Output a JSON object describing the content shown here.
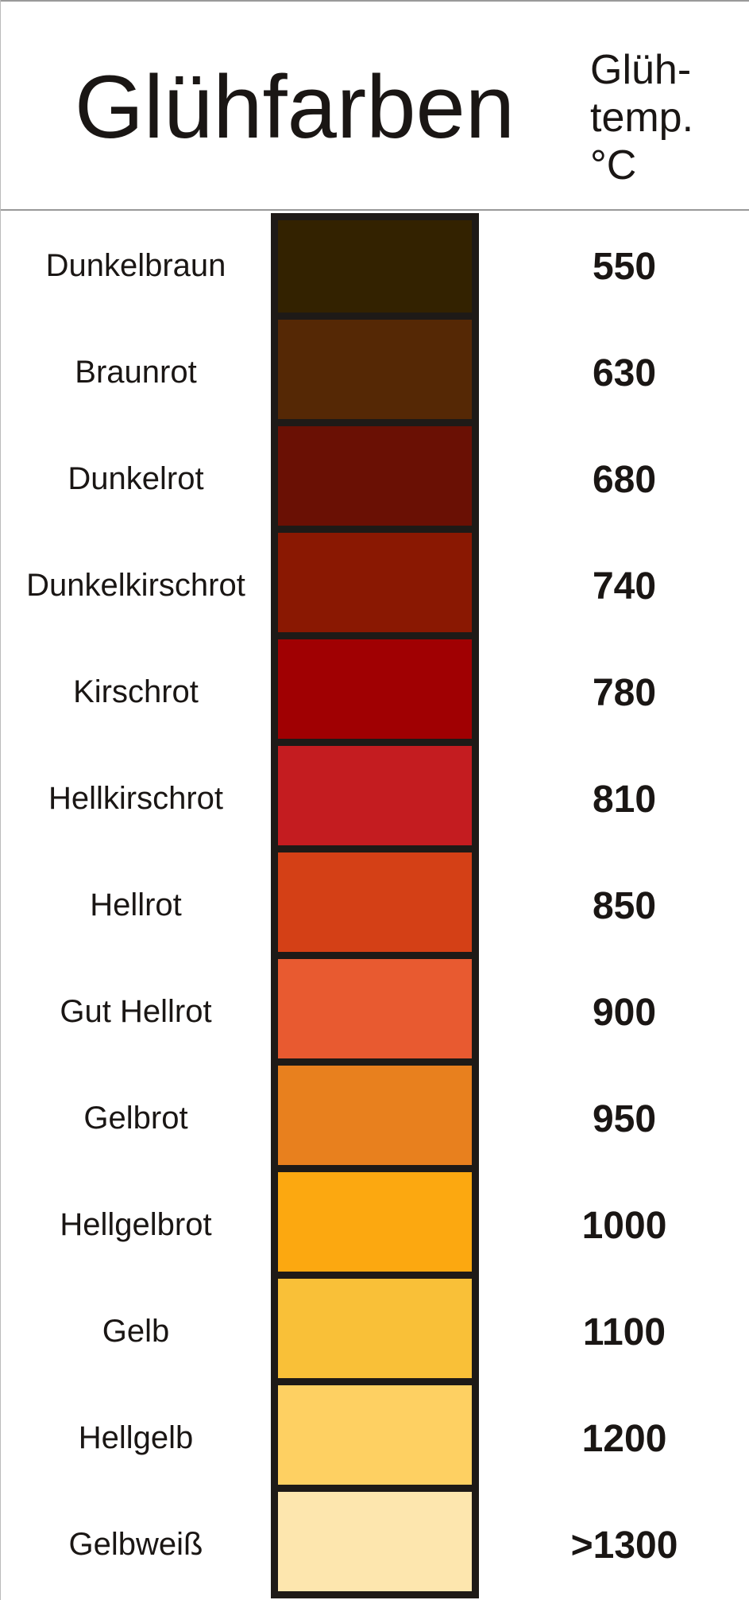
{
  "chart_data": {
    "type": "table",
    "title": "Glühfarben",
    "columns": [
      "Glühfarben",
      "Glüh- temp. °C"
    ],
    "unit_header": [
      "Glüh-",
      "temp.",
      "°C"
    ],
    "rows": [
      {
        "name": "Dunkelbraun",
        "temp": "550",
        "color": "#332200"
      },
      {
        "name": "Braunrot",
        "temp": "630",
        "color": "#552805"
      },
      {
        "name": "Dunkelrot",
        "temp": "680",
        "color": "#6a1004"
      },
      {
        "name": "Dunkelkirschrot",
        "temp": "740",
        "color": "#8a1802"
      },
      {
        "name": "Kirschrot",
        "temp": "780",
        "color": "#a00002"
      },
      {
        "name": "Hellkirschrot",
        "temp": "810",
        "color": "#c41c20"
      },
      {
        "name": "Hellrot",
        "temp": "850",
        "color": "#d44016"
      },
      {
        "name": "Gut Hellrot",
        "temp": "900",
        "color": "#e85a30"
      },
      {
        "name": "Gelbrot",
        "temp": "950",
        "color": "#e8801e"
      },
      {
        "name": "Hellgelbrot",
        "temp": "1000",
        "color": "#fca810"
      },
      {
        "name": "Gelb",
        "temp": "1100",
        "color": "#f9c038"
      },
      {
        "name": "Hellgelb",
        "temp": "1200",
        "color": "#fed062"
      },
      {
        "name": "Gelbweiß",
        "temp": ">1300",
        "color": "#fde6ae"
      }
    ]
  }
}
